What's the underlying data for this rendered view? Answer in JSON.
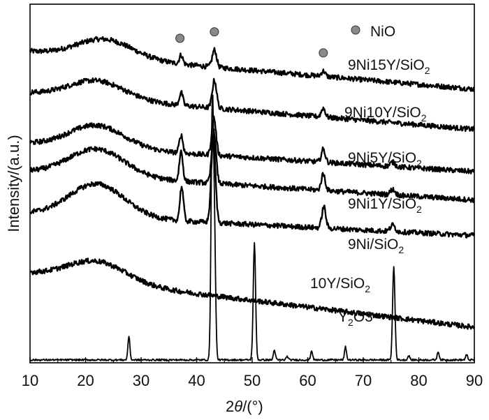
{
  "chart_data": {
    "type": "line",
    "title": "",
    "xlabel_parts": [
      "2",
      "θ",
      "/(°)"
    ],
    "ylabel": "Intensity/(a.u.)",
    "xlim": [
      10,
      90
    ],
    "xticks": [
      10,
      20,
      30,
      40,
      50,
      60,
      70,
      80,
      90
    ],
    "xtick_labels": [
      "10",
      "20",
      "30",
      "40",
      "50",
      "60",
      "70",
      "80",
      "90"
    ],
    "y_units": "offset intensity (a.u.), 0 = bottom axis, 100 = top axis",
    "grid": false,
    "legend": {
      "marker": "gray-circle",
      "label": "NiO",
      "placement": "top-right"
    },
    "nio_markers_x": [
      37.0,
      43.2,
      62.8
    ],
    "series": [
      {
        "name": "9Ni15Y/SiO2",
        "label_parts": [
          "9Ni15Y/SiO",
          "2",
          ""
        ],
        "baseline_start": 86.8,
        "baseline_end": 76.3,
        "hump": {
          "center": 23.5,
          "width": 7,
          "height": 5.2
        },
        "peaks": [
          {
            "x": 37.2,
            "h": 2.5,
            "w": 0.45
          },
          {
            "x": 43.2,
            "h": 4.8,
            "w": 0.55
          },
          {
            "x": 62.8,
            "h": 1.5,
            "w": 0.5
          }
        ]
      },
      {
        "name": "9Ni10Y/SiO2",
        "label_parts": [
          "9Ni10Y/SiO",
          "2",
          ""
        ],
        "baseline_start": 75.2,
        "baseline_end": 65.1,
        "hump": {
          "center": 22,
          "width": 7,
          "height": 5.0
        },
        "peaks": [
          {
            "x": 37.2,
            "h": 3.6,
            "w": 0.45
          },
          {
            "x": 43.2,
            "h": 7.8,
            "w": 0.55
          },
          {
            "x": 62.8,
            "h": 2.5,
            "w": 0.5
          }
        ]
      },
      {
        "name": "9Ni5Y/SiO2",
        "label_parts": [
          "9Ni5Y/SiO",
          "2",
          ""
        ],
        "baseline_start": 61.1,
        "baseline_end": 53.3,
        "hump": {
          "center": 22,
          "width": 7,
          "height": 6.3
        },
        "peaks": [
          {
            "x": 37.2,
            "h": 5.0,
            "w": 0.45
          },
          {
            "x": 43.1,
            "h": 10.5,
            "w": 0.55
          },
          {
            "x": 62.8,
            "h": 3.6,
            "w": 0.5
          },
          {
            "x": 75.3,
            "h": 1.2,
            "w": 0.6
          }
        ]
      },
      {
        "name": "9Ni1Y/SiO2",
        "label_parts": [
          "9Ni1Y/SiO",
          "2",
          ""
        ],
        "baseline_start": 53.3,
        "baseline_end": 45.4,
        "hump": {
          "center": 22,
          "width": 7,
          "height": 7.5
        },
        "peaks": [
          {
            "x": 37.2,
            "h": 8.3,
            "w": 0.45
          },
          {
            "x": 43.1,
            "h": 14.4,
            "w": 0.55
          },
          {
            "x": 62.8,
            "h": 4.6,
            "w": 0.5
          },
          {
            "x": 75.3,
            "h": 1.5,
            "w": 0.6
          }
        ]
      },
      {
        "name": "9Ni/SiO2",
        "label_parts": [
          "9Ni/SiO",
          "2",
          ""
        ],
        "baseline_start": 41.6,
        "baseline_end": 35.5,
        "hump": {
          "center": 22,
          "width": 7,
          "height": 9.2
        },
        "peaks": [
          {
            "x": 37.3,
            "h": 9.5,
            "w": 0.45
          },
          {
            "x": 43.0,
            "h": 23.0,
            "w": 0.55
          },
          {
            "x": 62.9,
            "h": 6.0,
            "w": 0.5
          },
          {
            "x": 75.3,
            "h": 1.8,
            "w": 0.6
          }
        ]
      },
      {
        "name": "10Y/SiO2",
        "label_parts": [
          "10Y/SiO",
          "2",
          ""
        ],
        "baseline_start": 24.9,
        "baseline_end": 9.9,
        "hump": {
          "center": 22,
          "width": 7.5,
          "height": 5.7
        },
        "peaks": []
      },
      {
        "name": "Y2O3",
        "label_parts": [
          "Y",
          "2",
          "O3"
        ],
        "baseline_start": 0.8,
        "baseline_end": 0.8,
        "hump": {
          "center": 22,
          "width": 6,
          "height": 0
        },
        "peaks": [
          {
            "x": 27.8,
            "h": 6.6,
            "w": 0.25
          },
          {
            "x": 42.8,
            "h": 68,
            "w": 0.3
          },
          {
            "x": 43.2,
            "h": 35,
            "w": 0.3
          },
          {
            "x": 50.4,
            "h": 32.5,
            "w": 0.3
          },
          {
            "x": 54.0,
            "h": 2.8,
            "w": 0.25
          },
          {
            "x": 56.3,
            "h": 1.0,
            "w": 0.25
          },
          {
            "x": 60.7,
            "h": 2.6,
            "w": 0.25
          },
          {
            "x": 66.8,
            "h": 3.6,
            "w": 0.25
          },
          {
            "x": 75.5,
            "h": 26,
            "w": 0.3
          },
          {
            "x": 78.2,
            "h": 1.2,
            "w": 0.25
          },
          {
            "x": 83.5,
            "h": 2.3,
            "w": 0.25
          },
          {
            "x": 88.6,
            "h": 1.4,
            "w": 0.25
          }
        ]
      }
    ]
  }
}
